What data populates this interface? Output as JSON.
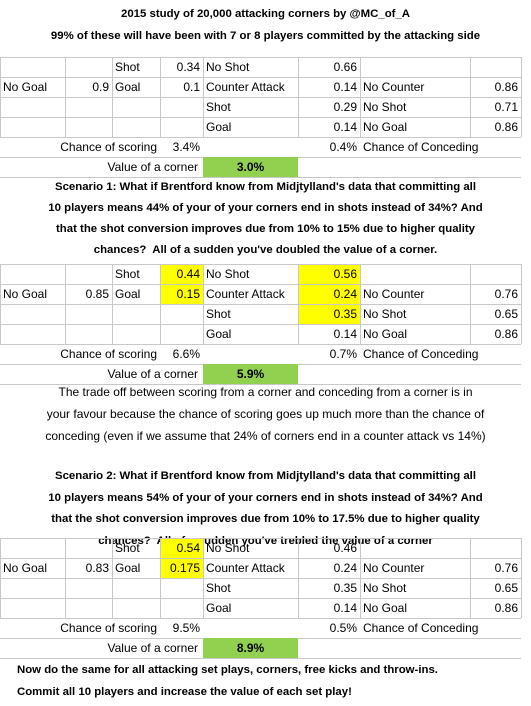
{
  "header": {
    "title": "2015 study of 20,000 attacking corners by @MC_of_A",
    "subtitle": "99% of these will have been with 7 or 8 players committed by the attacking side"
  },
  "tables": [
    {
      "rows": [
        [
          null,
          null,
          "Shot",
          "0.34",
          "No Shot",
          "0.66",
          null,
          null
        ],
        [
          "No Goal",
          "0.9",
          "Goal",
          "0.1",
          "Counter Attack",
          "0.14",
          "No Counter",
          "0.86"
        ],
        [
          null,
          null,
          null,
          null,
          "Shot",
          "0.29",
          "No Shot",
          "0.71"
        ],
        [
          null,
          null,
          null,
          null,
          "Goal",
          "0.14",
          "No Goal",
          "0.86"
        ]
      ],
      "scoring": {
        "label": "Chance of scoring",
        "value": "3.4%"
      },
      "conceding": {
        "value": "0.4%",
        "label": "Chance of Conceding"
      },
      "corner_value": {
        "label": "Value of a corner",
        "value": "3.0%",
        "fill": "#92d050"
      }
    },
    {
      "rows": [
        [
          null,
          null,
          "Shot",
          {
            "text": "0.44",
            "fill": "#ffff00"
          },
          "No Shot",
          {
            "text": "0.56",
            "fill": "#ffff00"
          },
          null,
          null
        ],
        [
          "No Goal",
          "0.85",
          "Goal",
          {
            "text": "0.15",
            "fill": "#ffff00"
          },
          "Counter Attack",
          {
            "text": "0.24",
            "fill": "#ffff00"
          },
          "No Counter",
          "0.76"
        ],
        [
          null,
          null,
          null,
          null,
          "Shot",
          {
            "text": "0.35",
            "fill": "#ffff00"
          },
          "No Shot",
          "0.65"
        ],
        [
          null,
          null,
          null,
          null,
          "Goal",
          "0.14",
          "No Goal",
          "0.86"
        ]
      ],
      "scoring": {
        "label": "Chance of scoring",
        "value": "6.6%"
      },
      "conceding": {
        "value": "0.7%",
        "label": "Chance of Conceding"
      },
      "corner_value": {
        "label": "Value of a corner",
        "value": "5.9%",
        "fill": "#92d050"
      }
    },
    {
      "rows": [
        [
          null,
          null,
          "Shot",
          {
            "text": "0.54",
            "fill": "#ffff00"
          },
          "No Shot",
          "0.46",
          null,
          null
        ],
        [
          "No Goal",
          "0.83",
          "Goal",
          {
            "text": "0.175",
            "fill": "#ffff00"
          },
          "Counter Attack",
          "0.24",
          "No Counter",
          "0.76"
        ],
        [
          null,
          null,
          null,
          null,
          "Shot",
          "0.35",
          "No Shot",
          "0.65"
        ],
        [
          null,
          null,
          null,
          null,
          "Goal",
          "0.14",
          "No Goal",
          "0.86"
        ]
      ],
      "scoring": {
        "label": "Chance of scoring",
        "value": "9.5%"
      },
      "conceding": {
        "value": "0.5%",
        "label": "Chance of Conceding"
      },
      "corner_value": {
        "label": "Value of a corner",
        "value": "8.9%",
        "fill": "#92d050"
      }
    }
  ],
  "scenario_1": {
    "lines": [
      "Scenario 1: What if Brentford know from Midjtylland's data that committing all",
      "10 players means 44% of your of your corners end in shots instead of 34%? And",
      "that the shot conversion improves due from 10% to 15% due to higher quality",
      "chances?  All of a sudden you've doubled the value of a corner."
    ]
  },
  "trade_off": {
    "lines": [
      "The trade off between scoring from a corner and conceding from a corner is in",
      "your favour because the chance of scoring goes up much more than the chance of",
      "conceding (even if we assume that 24% of corners end in a counter attack vs 14%)"
    ]
  },
  "scenario_2": {
    "lines": [
      "Scenario 2: What if Brentford know from Midjtylland's data that committing all",
      "10 players means 54% of your of your corners end in shots instead of 34%? And",
      "that the shot conversion improves due from 10% to 17.5% due to higher quality",
      "chances?  All of a sudden you've trebled the value of a corner"
    ]
  },
  "conclusion": {
    "lines": [
      "Now do the same for all attacking set plays, corners, free kicks and throw-ins.",
      "Commit all 10 players and increase the value of each set play!"
    ]
  }
}
